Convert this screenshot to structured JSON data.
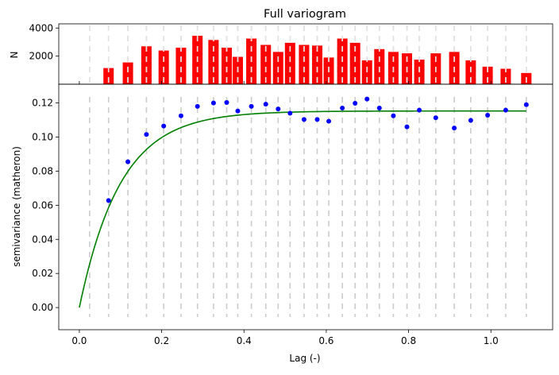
{
  "chart_data": [
    {
      "type": "bar",
      "title": "Full variogram",
      "xlabel": "",
      "ylabel": "N",
      "ylim": [
        0,
        4300
      ],
      "yticks": [
        2000,
        4000
      ],
      "bar_color": "#ff0000",
      "x": [
        0.071,
        0.118,
        0.163,
        0.205,
        0.247,
        0.287,
        0.326,
        0.358,
        0.385,
        0.418,
        0.453,
        0.483,
        0.512,
        0.546,
        0.578,
        0.606,
        0.639,
        0.67,
        0.699,
        0.729,
        0.763,
        0.796,
        0.826,
        0.866,
        0.911,
        0.951,
        0.992,
        1.036,
        1.086
      ],
      "values": [
        1150,
        1550,
        2700,
        2400,
        2600,
        3450,
        3150,
        2600,
        1950,
        3250,
        2800,
        2300,
        2950,
        2800,
        2750,
        1900,
        3250,
        2950,
        1700,
        2500,
        2300,
        2200,
        1750,
        2200,
        2300,
        1700,
        1250,
        1100,
        800
      ]
    },
    {
      "type": "scatter",
      "xlabel": "Lag (-)",
      "ylabel": "semivariance (matheron)",
      "xlim": [
        -0.05,
        1.15
      ],
      "ylim": [
        -0.013,
        0.131
      ],
      "xticks": [
        0.0,
        0.2,
        0.4,
        0.6,
        0.8,
        1.0
      ],
      "xtick_labels": [
        "0.0",
        "0.2",
        "0.4",
        "0.6",
        "0.8",
        "1.0"
      ],
      "yticks": [
        0.0,
        0.02,
        0.04,
        0.06,
        0.08,
        0.1,
        0.12
      ],
      "ytick_labels": [
        "0.00",
        "0.02",
        "0.04",
        "0.06",
        "0.08",
        "0.10",
        "0.12"
      ],
      "bin_edges": [
        0.025,
        0.071,
        0.118,
        0.163,
        0.205,
        0.247,
        0.287,
        0.326,
        0.358,
        0.385,
        0.418,
        0.453,
        0.483,
        0.512,
        0.546,
        0.578,
        0.606,
        0.639,
        0.67,
        0.699,
        0.729,
        0.763,
        0.796,
        0.826,
        0.866,
        0.911,
        0.951,
        0.992,
        1.036,
        1.086
      ],
      "points": {
        "color": "#0000ff",
        "x": [
          0.071,
          0.118,
          0.163,
          0.205,
          0.247,
          0.287,
          0.326,
          0.358,
          0.385,
          0.418,
          0.453,
          0.483,
          0.512,
          0.546,
          0.578,
          0.606,
          0.639,
          0.67,
          0.699,
          0.729,
          0.763,
          0.796,
          0.826,
          0.866,
          0.911,
          0.951,
          0.992,
          1.036,
          1.086
        ],
        "y": [
          0.0628,
          0.0855,
          0.1015,
          0.1065,
          0.1125,
          0.118,
          0.12,
          0.1203,
          0.1153,
          0.118,
          0.1193,
          0.1165,
          0.114,
          0.1103,
          0.1103,
          0.1093,
          0.117,
          0.1198,
          0.1223,
          0.117,
          0.1125,
          0.106,
          0.1158,
          0.1113,
          0.1053,
          0.1098,
          0.1128,
          0.1158,
          0.119
        ]
      },
      "model": {
        "color": "#008000",
        "sill": 0.1153,
        "range": 0.3,
        "x_max": 1.086
      }
    }
  ]
}
